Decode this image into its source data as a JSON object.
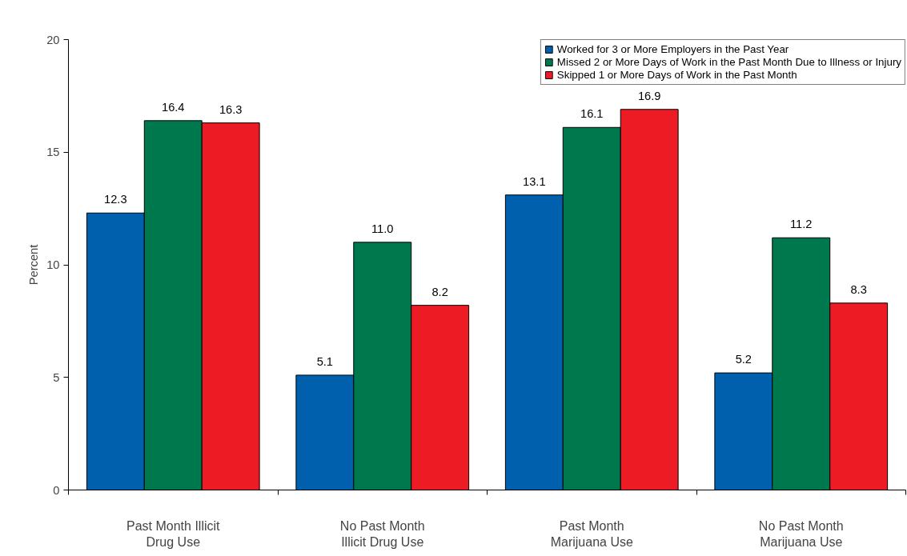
{
  "chart_data": {
    "type": "bar",
    "ylabel": "Percent",
    "categories": [
      "Past Month Illicit Drug Use",
      "No Past Month Illicit Drug Use",
      "Past Month Marijuana Use",
      "No Past Month Marijuana Use"
    ],
    "series": [
      {
        "name": "Worked for 3 or More Employers in the Past Year",
        "color": "#0060ae",
        "values": [
          12.3,
          5.1,
          13.1,
          5.2
        ],
        "value_labels": [
          "12.3",
          "5.1",
          "13.1",
          "5.2"
        ]
      },
      {
        "name": "Missed 2 or More Days of Work in the Past Month Due to Illness or Injury",
        "color": "#00784e",
        "values": [
          16.4,
          11.0,
          16.1,
          11.2
        ],
        "value_labels": [
          "16.4",
          "11.0",
          "16.1",
          "11.2"
        ]
      },
      {
        "name": "Skipped 1 or More Days of Work in the Past Month",
        "color": "#ed1c24",
        "values": [
          16.3,
          8.2,
          16.9,
          8.3
        ],
        "value_labels": [
          "16.3",
          "8.2",
          "16.9",
          "8.3"
        ]
      }
    ],
    "ylim": [
      0,
      20
    ],
    "yticks": [
      0,
      5,
      10,
      15,
      20
    ],
    "grid": false,
    "legend": "top right"
  }
}
